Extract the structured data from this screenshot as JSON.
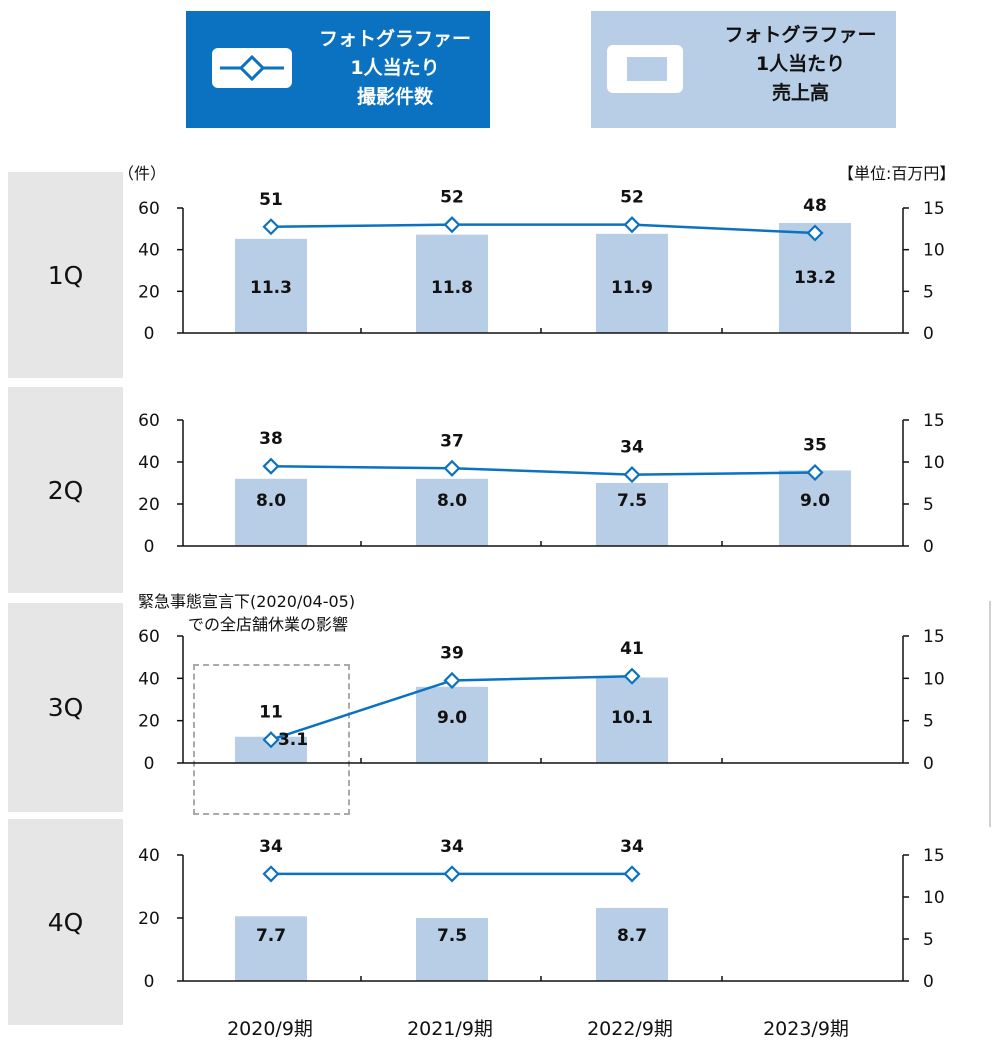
{
  "legend": {
    "photos_per_photographer": "フォトグラファー\n1人当たり\n撮影件数",
    "sales_per_photographer": "フォトグラファー\n1人当たり\n売上高"
  },
  "left_unit": "（件）",
  "right_unit": "【単位:百万円】",
  "annotation": {
    "line1": "緊急事態宣言下(2020/04-05)",
    "line2": "での全店舗休業の影響"
  },
  "colors": {
    "line": "#0b72c1",
    "bar": "#b8cde6",
    "panel": "#e6e6e6"
  },
  "chart_data": [
    {
      "type": "bar",
      "panel_label": "1Q",
      "categories": [
        "2020/9期",
        "2021/9期",
        "2022/9期",
        "2023/9期"
      ],
      "series": [
        {
          "name": "フォトグラファー1人当たり撮影件数",
          "type": "line",
          "axis": "left",
          "values": [
            51,
            52,
            52,
            48
          ]
        },
        {
          "name": "フォトグラファー1人当たり売上高",
          "type": "bar",
          "axis": "right",
          "values": [
            11.3,
            11.8,
            11.9,
            13.2
          ]
        }
      ],
      "left_ylim": [
        0,
        60
      ],
      "left_ticks": [
        0,
        20,
        40,
        60
      ],
      "right_ylim": [
        0,
        15
      ],
      "right_ticks": [
        0,
        5,
        10,
        15
      ]
    },
    {
      "type": "bar",
      "panel_label": "2Q",
      "categories": [
        "2020/9期",
        "2021/9期",
        "2022/9期",
        "2023/9期"
      ],
      "series": [
        {
          "name": "フォトグラファー1人当たり撮影件数",
          "type": "line",
          "axis": "left",
          "values": [
            38,
            37,
            34,
            35
          ]
        },
        {
          "name": "フォトグラファー1人当たり売上高",
          "type": "bar",
          "axis": "right",
          "values": [
            8.0,
            8.0,
            7.5,
            9.0
          ]
        }
      ],
      "left_ylim": [
        0,
        60
      ],
      "left_ticks": [
        0,
        20,
        40,
        60
      ],
      "right_ylim": [
        0,
        15
      ],
      "right_ticks": [
        0,
        5,
        10,
        15
      ]
    },
    {
      "type": "bar",
      "panel_label": "3Q",
      "categories": [
        "2020/9期",
        "2021/9期",
        "2022/9期",
        "2023/9期"
      ],
      "series": [
        {
          "name": "フォトグラファー1人当たり撮影件数",
          "type": "line",
          "axis": "left",
          "values": [
            11,
            39,
            41,
            null
          ]
        },
        {
          "name": "フォトグラファー1人当たり売上高",
          "type": "bar",
          "axis": "right",
          "values": [
            3.1,
            9.0,
            10.1,
            null
          ]
        }
      ],
      "left_ylim": [
        0,
        60
      ],
      "left_ticks": [
        0,
        20,
        40,
        60
      ],
      "right_ylim": [
        0,
        15
      ],
      "right_ticks": [
        0,
        5,
        10,
        15
      ]
    },
    {
      "type": "bar",
      "panel_label": "4Q",
      "categories": [
        "2020/9期",
        "2021/9期",
        "2022/9期",
        "2023/9期"
      ],
      "series": [
        {
          "name": "フォトグラファー1人当たり撮影件数",
          "type": "line",
          "axis": "left",
          "values": [
            34,
            34,
            34,
            null
          ]
        },
        {
          "name": "フォトグラファー1人当たり売上高",
          "type": "bar",
          "axis": "right",
          "values": [
            7.7,
            7.5,
            8.7,
            null
          ]
        }
      ],
      "left_ylim": [
        0,
        40
      ],
      "left_ticks": [
        0,
        20,
        40
      ],
      "right_ylim": [
        0,
        15
      ],
      "right_ticks": [
        0,
        5,
        10,
        15
      ]
    }
  ]
}
